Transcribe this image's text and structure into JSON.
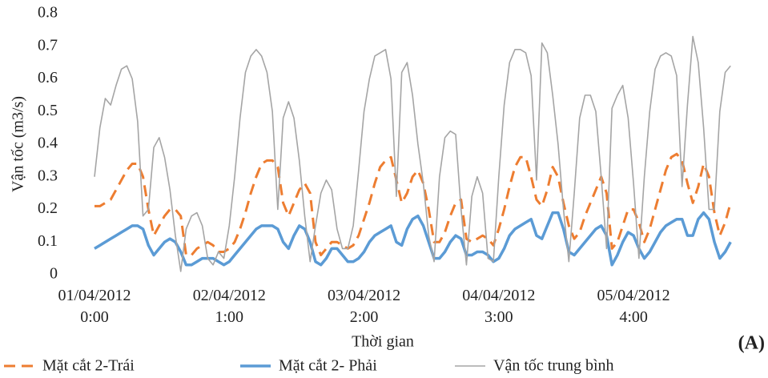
{
  "chart_data": {
    "type": "line",
    "y_label": "Vận tốc (m3/s)",
    "x_label": "Thời gian",
    "annotation": "(A)",
    "legend": "bottom",
    "x": [
      0,
      1,
      2,
      3,
      4,
      5,
      6,
      7,
      8,
      9,
      10,
      11,
      12,
      13,
      14,
      15,
      16,
      17,
      18,
      19,
      20,
      21,
      22,
      23,
      24,
      25,
      26,
      27,
      28,
      29,
      30,
      31,
      32,
      33,
      34,
      35,
      36,
      37,
      38,
      39,
      40,
      41,
      42,
      43,
      44,
      45,
      46,
      47,
      48,
      49,
      50,
      51,
      52,
      53,
      54,
      55,
      56,
      57,
      58,
      59,
      60,
      61,
      62,
      63,
      64,
      65,
      66,
      67,
      68,
      69,
      70,
      71,
      72,
      73,
      74,
      75,
      76,
      77,
      78,
      79,
      80,
      81,
      82,
      83,
      84,
      85,
      86,
      87,
      88,
      89,
      90,
      91,
      92,
      93,
      94,
      95,
      96,
      97,
      98,
      99,
      100,
      101,
      102,
      103,
      104,
      105,
      106,
      107,
      108,
      109,
      110,
      111,
      112,
      113,
      114,
      115,
      116,
      117,
      118
    ],
    "xlim": [
      0,
      119
    ],
    "xticks": [
      {
        "value": 0,
        "label": "01/04/2012\n0:00"
      },
      {
        "value": 25,
        "label": "02/04/2012\n1:00"
      },
      {
        "value": 50,
        "label": "03/04/2012\n2:00"
      },
      {
        "value": 75,
        "label": "04/04/2012\n3:00"
      },
      {
        "value": 100,
        "label": "05/04/2012\n4:00"
      }
    ],
    "ylim": [
      0,
      0.8
    ],
    "yticks": [
      0,
      0.1,
      0.2,
      0.3,
      0.4,
      0.5,
      0.6,
      0.7,
      0.8
    ],
    "series": [
      {
        "name": "Mặt cắt 2-Trái",
        "color": "#ed7d31",
        "dashed": true,
        "values": [
          0.21,
          0.21,
          0.22,
          0.23,
          0.26,
          0.29,
          0.32,
          0.34,
          0.34,
          0.3,
          0.2,
          0.12,
          0.15,
          0.18,
          0.2,
          0.2,
          0.18,
          0.06,
          0.06,
          0.08,
          0.09,
          0.1,
          0.09,
          0.07,
          0.07,
          0.08,
          0.1,
          0.14,
          0.19,
          0.25,
          0.3,
          0.34,
          0.35,
          0.35,
          0.33,
          0.22,
          0.18,
          0.22,
          0.26,
          0.28,
          0.25,
          0.1,
          0.06,
          0.08,
          0.1,
          0.1,
          0.09,
          0.08,
          0.09,
          0.12,
          0.17,
          0.22,
          0.28,
          0.33,
          0.35,
          0.36,
          0.29,
          0.22,
          0.25,
          0.3,
          0.32,
          0.28,
          0.2,
          0.1,
          0.1,
          0.13,
          0.18,
          0.22,
          0.23,
          0.11,
          0.1,
          0.11,
          0.12,
          0.11,
          0.09,
          0.14,
          0.2,
          0.27,
          0.33,
          0.36,
          0.36,
          0.3,
          0.23,
          0.21,
          0.26,
          0.33,
          0.3,
          0.22,
          0.15,
          0.11,
          0.13,
          0.18,
          0.22,
          0.26,
          0.3,
          0.25,
          0.08,
          0.1,
          0.15,
          0.2,
          0.2,
          0.16,
          0.1,
          0.14,
          0.2,
          0.26,
          0.32,
          0.36,
          0.37,
          0.35,
          0.28,
          0.22,
          0.27,
          0.34,
          0.3,
          0.19,
          0.12,
          0.16,
          0.22
        ]
      },
      {
        "name": "Mặt cắt 2- Phải",
        "color": "#5b9bd5",
        "dashed": false,
        "values": [
          0.08,
          0.09,
          0.1,
          0.11,
          0.12,
          0.13,
          0.14,
          0.15,
          0.15,
          0.14,
          0.09,
          0.06,
          0.08,
          0.1,
          0.11,
          0.1,
          0.07,
          0.03,
          0.03,
          0.04,
          0.05,
          0.05,
          0.05,
          0.04,
          0.03,
          0.04,
          0.06,
          0.08,
          0.1,
          0.12,
          0.14,
          0.15,
          0.15,
          0.15,
          0.14,
          0.1,
          0.08,
          0.12,
          0.15,
          0.14,
          0.1,
          0.04,
          0.03,
          0.05,
          0.08,
          0.08,
          0.06,
          0.04,
          0.04,
          0.05,
          0.07,
          0.1,
          0.12,
          0.13,
          0.14,
          0.15,
          0.1,
          0.09,
          0.14,
          0.17,
          0.18,
          0.15,
          0.1,
          0.05,
          0.05,
          0.07,
          0.1,
          0.12,
          0.11,
          0.06,
          0.06,
          0.07,
          0.07,
          0.06,
          0.04,
          0.05,
          0.08,
          0.12,
          0.14,
          0.15,
          0.16,
          0.17,
          0.12,
          0.11,
          0.15,
          0.19,
          0.19,
          0.14,
          0.07,
          0.06,
          0.08,
          0.1,
          0.12,
          0.14,
          0.15,
          0.12,
          0.03,
          0.06,
          0.1,
          0.13,
          0.12,
          0.08,
          0.05,
          0.07,
          0.1,
          0.13,
          0.15,
          0.16,
          0.17,
          0.17,
          0.12,
          0.12,
          0.17,
          0.19,
          0.17,
          0.1,
          0.05,
          0.07,
          0.1
        ]
      },
      {
        "name": "Vận tốc trung bình",
        "color": "#a5a5a5",
        "dashed": false,
        "values": [
          0.3,
          0.45,
          0.54,
          0.52,
          0.58,
          0.63,
          0.64,
          0.6,
          0.47,
          0.18,
          0.2,
          0.39,
          0.42,
          0.36,
          0.26,
          0.12,
          0.01,
          0.14,
          0.18,
          0.19,
          0.15,
          0.05,
          0.03,
          0.07,
          0.05,
          0.15,
          0.3,
          0.48,
          0.62,
          0.67,
          0.69,
          0.67,
          0.62,
          0.5,
          0.2,
          0.48,
          0.53,
          0.48,
          0.35,
          0.18,
          0.04,
          0.15,
          0.25,
          0.29,
          0.26,
          0.14,
          0.08,
          0.08,
          0.15,
          0.32,
          0.5,
          0.6,
          0.67,
          0.68,
          0.69,
          0.6,
          0.24,
          0.62,
          0.65,
          0.55,
          0.4,
          0.28,
          0.12,
          0.04,
          0.3,
          0.42,
          0.44,
          0.43,
          0.2,
          0.03,
          0.24,
          0.3,
          0.25,
          0.05,
          0.04,
          0.3,
          0.52,
          0.65,
          0.69,
          0.69,
          0.68,
          0.61,
          0.29,
          0.71,
          0.68,
          0.55,
          0.4,
          0.2,
          0.04,
          0.25,
          0.48,
          0.55,
          0.55,
          0.5,
          0.3,
          0.08,
          0.51,
          0.55,
          0.58,
          0.48,
          0.28,
          0.05,
          0.3,
          0.5,
          0.63,
          0.67,
          0.68,
          0.67,
          0.61,
          0.27,
          0.52,
          0.73,
          0.65,
          0.45,
          0.2,
          0.2,
          0.5,
          0.62,
          0.64
        ]
      }
    ]
  }
}
